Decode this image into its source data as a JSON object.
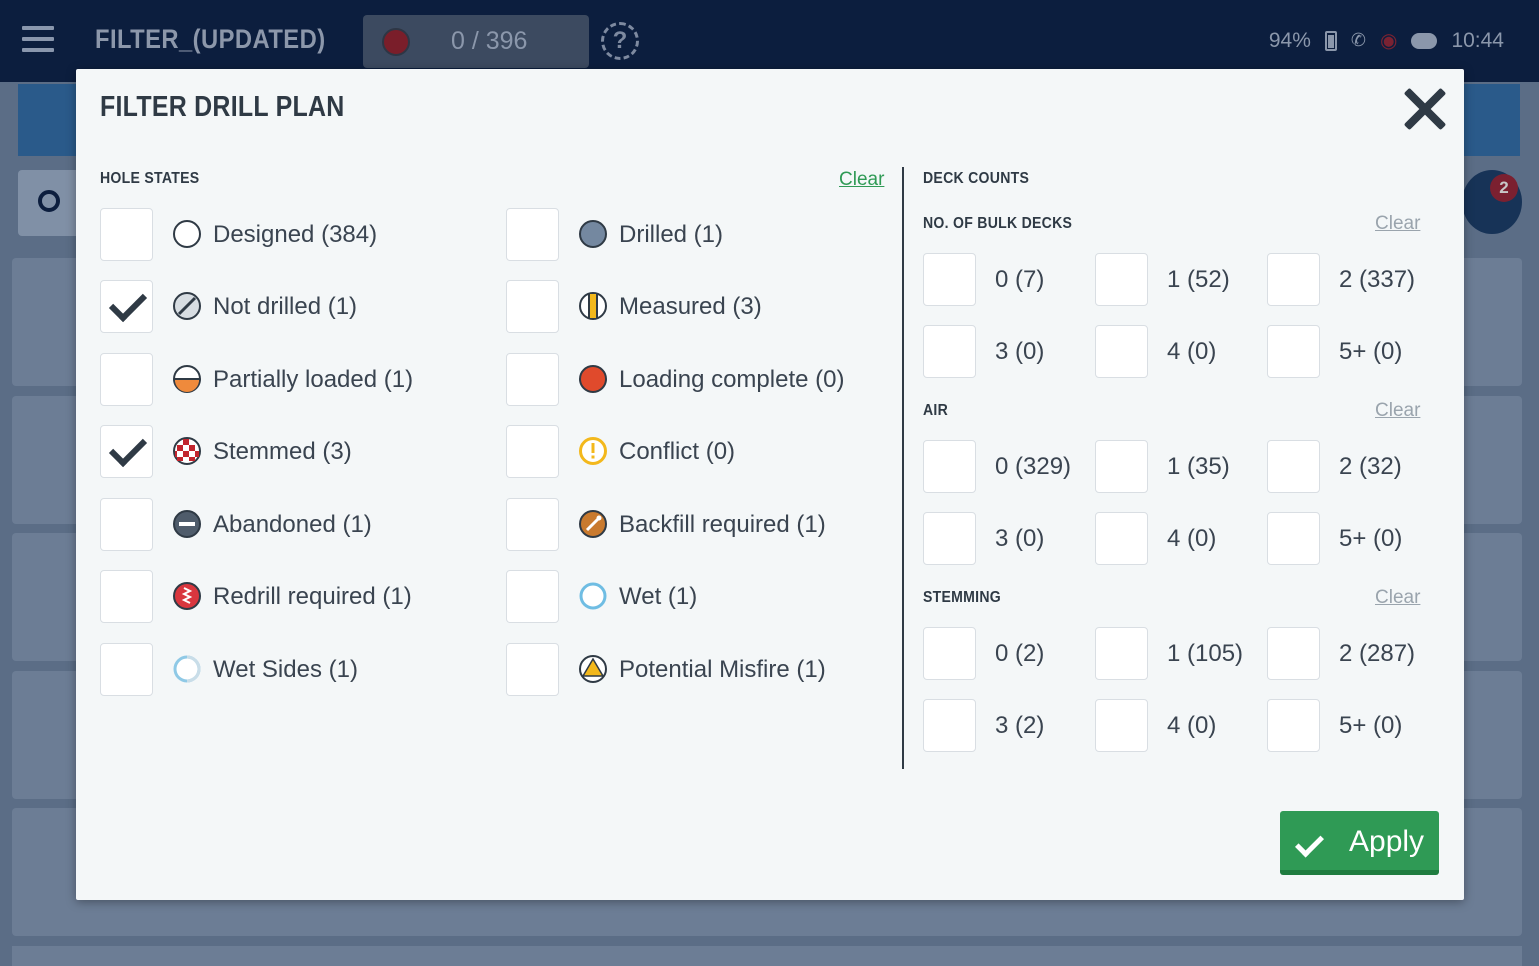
{
  "appbar": {
    "title": "FILTER_(UPDATED)",
    "counter": "0 / 396",
    "help": "?",
    "battery": "94%",
    "time": "10:44"
  },
  "background": {
    "notification_count": "2"
  },
  "modal": {
    "title": "FILTER DRILL PLAN",
    "hole_states": {
      "heading": "HOLE STATES",
      "clear_label": "Clear",
      "left": [
        {
          "label": "Designed (384)",
          "checked": false,
          "icon": "designed-icon"
        },
        {
          "label": "Not drilled (1)",
          "checked": true,
          "icon": "not-drilled-icon"
        },
        {
          "label": "Partially loaded (1)",
          "checked": false,
          "icon": "partially-loaded-icon"
        },
        {
          "label": "Stemmed (3)",
          "checked": true,
          "icon": "stemmed-icon"
        },
        {
          "label": "Abandoned (1)",
          "checked": false,
          "icon": "abandoned-icon"
        },
        {
          "label": "Redrill required (1)",
          "checked": false,
          "icon": "redrill-icon"
        },
        {
          "label": "Wet Sides (1)",
          "checked": false,
          "icon": "wet-sides-icon"
        }
      ],
      "right": [
        {
          "label": "Drilled (1)",
          "checked": false,
          "icon": "drilled-icon"
        },
        {
          "label": "Measured (3)",
          "checked": false,
          "icon": "measured-icon"
        },
        {
          "label": "Loading complete (0)",
          "checked": false,
          "icon": "loading-complete-icon"
        },
        {
          "label": "Conflict (0)",
          "checked": false,
          "icon": "conflict-icon"
        },
        {
          "label": "Backfill required (1)",
          "checked": false,
          "icon": "backfill-icon"
        },
        {
          "label": "Wet (1)",
          "checked": false,
          "icon": "wet-icon"
        },
        {
          "label": "Potential Misfire (1)",
          "checked": false,
          "icon": "misfire-icon"
        }
      ]
    },
    "deck_counts": {
      "heading": "DECK COUNTS",
      "groups": [
        {
          "heading": "NO. OF BULK DECKS",
          "clear_label": "Clear",
          "options": [
            "0 (7)",
            "1 (52)",
            "2 (337)",
            "3 (0)",
            "4 (0)",
            "5+ (0)"
          ]
        },
        {
          "heading": "AIR",
          "clear_label": "Clear",
          "options": [
            "0 (329)",
            "1 (35)",
            "2 (32)",
            "3 (0)",
            "4 (0)",
            "5+ (0)"
          ]
        },
        {
          "heading": "STEMMING",
          "clear_label": "Clear",
          "options": [
            "0 (2)",
            "1 (105)",
            "2 (287)",
            "3 (2)",
            "4 (0)",
            "5+ (0)"
          ]
        }
      ]
    },
    "apply_label": "Apply"
  },
  "colors": {
    "accent_green": "#2f9a55",
    "appbar": "#0c1e3e",
    "text_dark": "#2f3a45"
  }
}
